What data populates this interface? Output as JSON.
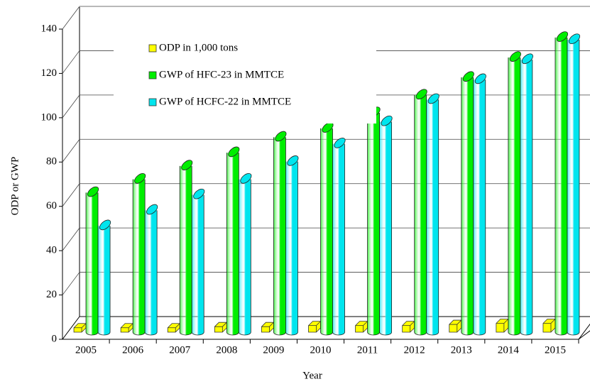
{
  "chart_data": {
    "type": "bar",
    "x_label": "Year",
    "y_label": "ODP or GWP",
    "categories": [
      "2005",
      "2006",
      "2007",
      "2008",
      "2009",
      "2010",
      "2011",
      "2012",
      "2013",
      "2014",
      "2015"
    ],
    "series": [
      {
        "name": "ODP in 1,000 tons",
        "color": "#ffff00",
        "values": [
          2,
          2,
          2,
          2.5,
          2.5,
          3,
          3,
          3,
          3.5,
          4,
          4
        ]
      },
      {
        "name": "GWP of HFC-23 in MMTCE",
        "color": "#00ee00",
        "values": [
          63,
          69,
          75,
          81,
          88,
          92,
          99,
          107,
          115,
          124,
          133
        ]
      },
      {
        "name": "GWP of HCFC-22 in MMTCE",
        "color": "#00e5ee",
        "values": [
          48,
          55,
          62,
          69,
          77,
          85,
          95,
          105,
          114,
          123,
          132
        ]
      }
    ],
    "ylim": [
      0,
      140
    ],
    "yticks": [
      0,
      20,
      40,
      60,
      80,
      100,
      120,
      140
    ],
    "grid": true,
    "legend": "upper left"
  }
}
